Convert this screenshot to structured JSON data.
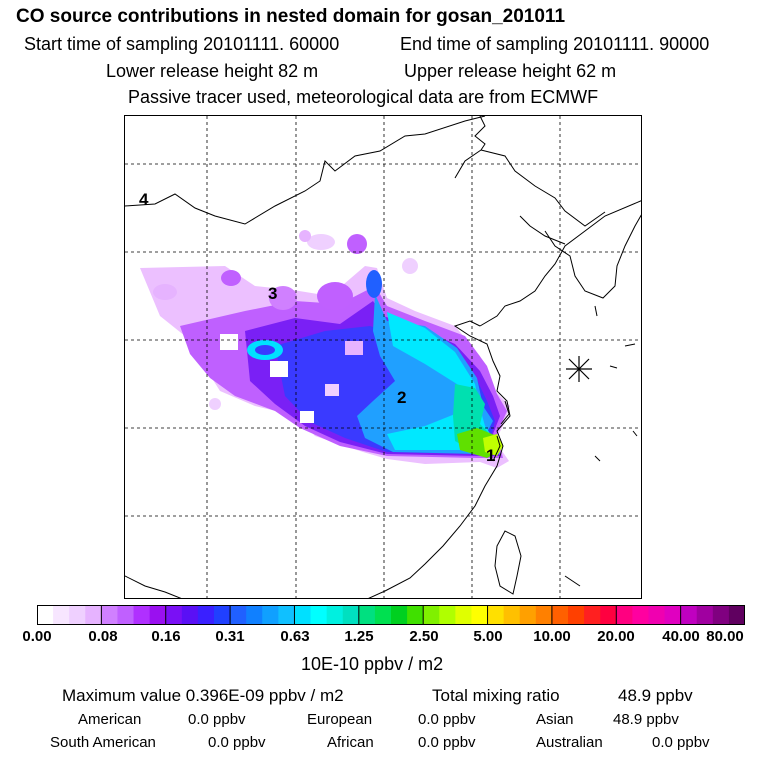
{
  "header": {
    "title": "CO  source contributions in nested domain for gosan_201011",
    "start_label": "Start time of sampling 20101111. 60000",
    "end_label": "End time of sampling 20101111. 90000",
    "lower_label": "Lower release height   82 m",
    "upper_label": "Upper release height   62 m",
    "note": "Passive tracer used, meteorological data are from ECMWF"
  },
  "map": {
    "region_labels": [
      "1",
      "2",
      "3",
      "4"
    ],
    "receptor_marker": "asterisk-icon"
  },
  "colorbar": {
    "ticks": [
      "0.00",
      "0.08",
      "0.16",
      "0.31",
      "0.63",
      "1.25",
      "2.50",
      "5.00",
      "10.00",
      "20.00",
      "40.00",
      "80.00"
    ],
    "unit": "10E-10 ppbv / m2",
    "colors": [
      "#ffffff",
      "#f7e6ff",
      "#efd0ff",
      "#e6b3ff",
      "#d080ff",
      "#c060ff",
      "#b030ff",
      "#9a10f0",
      "#7a10f5",
      "#5a10f5",
      "#3a20ff",
      "#2040ff",
      "#2060ff",
      "#1080ff",
      "#10a0ff",
      "#10c0ff",
      "#00e0ff",
      "#00ffff",
      "#00f0e0",
      "#00e0c0",
      "#00e080",
      "#00e050",
      "#00d020",
      "#40e000",
      "#80f000",
      "#b0ff00",
      "#e0ff00",
      "#ffff00",
      "#ffe000",
      "#ffc000",
      "#ffa000",
      "#ff8000",
      "#ff6000",
      "#ff4000",
      "#ff2020",
      "#ff0040",
      "#ff0080",
      "#ff00a0",
      "#f000b0",
      "#e000c0",
      "#c000c0",
      "#a000a0",
      "#800080",
      "#600060"
    ]
  },
  "stats": {
    "max_label": "Maximum value  0.396E-09 ppbv / m2",
    "total_label": "Total mixing ratio",
    "total_value": "48.9 ppbv",
    "american_label": "American",
    "american_value": "0.0 ppbv",
    "european_label": "European",
    "european_value": "0.0 ppbv",
    "asian_label": "Asian",
    "asian_value": "48.9 ppbv",
    "south_american_label": "South American",
    "south_american_value": "0.0 ppbv",
    "african_label": "African",
    "african_value": "0.0 ppbv",
    "australian_label": "Australian",
    "australian_value": "0.0 ppbv"
  }
}
